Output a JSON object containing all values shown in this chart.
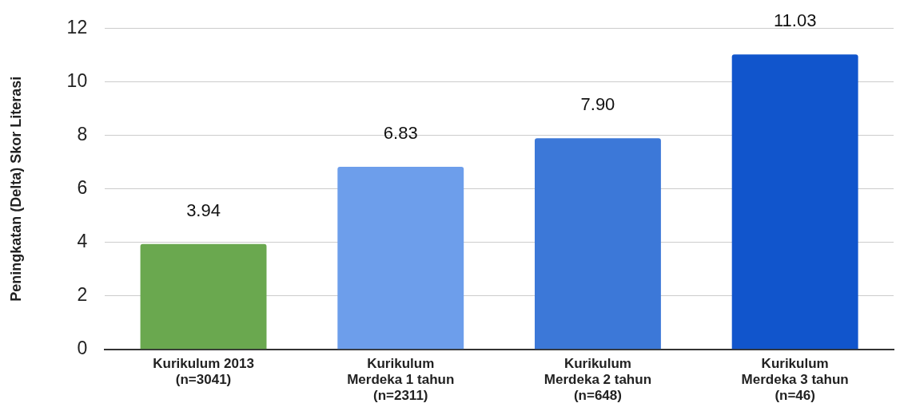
{
  "chart_data": {
    "type": "bar",
    "ylabel": "Peningkatan (Delta) Skor Literasi",
    "categories": [
      "Kurikulum 2013\n(n=3041)",
      "Kurikulum\nMerdeka 1 tahun\n(n=2311)",
      "Kurikulum\nMerdeka 2 tahun\n(n=648)",
      "Kurikulum\nMerdeka 3 tahun\n(n=46)"
    ],
    "values": [
      3.94,
      6.83,
      7.9,
      11.03
    ],
    "colors": [
      "#6aa84f",
      "#6d9eeb",
      "#3c78d8",
      "#1155cc"
    ],
    "value_labels": [
      "3.94",
      "6.83",
      "7.90",
      "11.03"
    ],
    "ylim": [
      0,
      12
    ],
    "yticks": [
      0,
      2,
      4,
      6,
      8,
      10,
      12
    ],
    "grid": "y",
    "legend": false
  }
}
